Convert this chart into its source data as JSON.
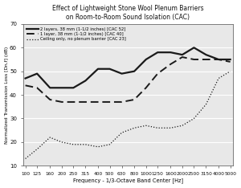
{
  "title_line1": "Effect of Lightweight Stone Wool Plenum Barriers",
  "title_line2": "on Room-to-Room Sound Isolation (CAC)",
  "xlabel": "Frequency - 1/3-Octave Band Center [Hz]",
  "ylabel": "Normalized Transmission Loss [Dn,f] (dB)",
  "frequencies": [
    100,
    125,
    160,
    200,
    250,
    315,
    400,
    500,
    630,
    800,
    1000,
    1250,
    1600,
    2000,
    2500,
    3150,
    4000,
    5000
  ],
  "freq_labels": [
    "100",
    "125",
    "160",
    "200",
    "250",
    "315",
    "400",
    "500",
    "630",
    "800",
    "1000",
    "1250",
    "1600",
    "2000",
    "2500",
    "3150",
    "4000",
    "5000"
  ],
  "series1_label": "2 layers, 38 mm (1-1/2 inches) [CAC 52]",
  "series1_values": [
    47,
    49,
    43,
    43,
    43,
    46,
    51,
    51,
    49,
    50,
    55,
    58,
    58,
    57,
    60,
    57,
    55,
    55
  ],
  "series2_label": "1 layer, 38 mm (1-1/2 inches) [CAC 40]",
  "series2_values": [
    44,
    43,
    38,
    37,
    37,
    37,
    37,
    37,
    37,
    38,
    43,
    49,
    53,
    56,
    55,
    55,
    55,
    54
  ],
  "series3_label": "Ceiling only, no plenum barrier [CAC 23]",
  "series3_values": [
    13,
    17,
    22,
    20,
    19,
    19,
    18,
    19,
    24,
    26,
    27,
    26,
    26,
    27,
    30,
    36,
    47,
    50
  ],
  "ylim": [
    10,
    70
  ],
  "yticks": [
    10,
    20,
    30,
    40,
    50,
    60,
    70
  ],
  "bg_color": "#ffffff",
  "plot_bg_color": "#e8e8e8",
  "line_color": "#1a1a1a",
  "grid_color": "#ffffff"
}
